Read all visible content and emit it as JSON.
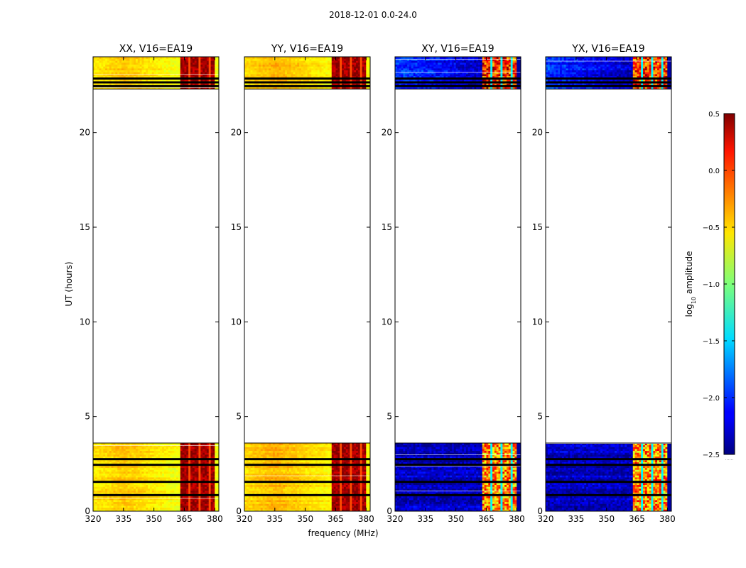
{
  "figure": {
    "suptitle": "2018-12-01 0.0-24.0",
    "xlabel": "frequency (MHz)",
    "ylabel": "UT (hours)"
  },
  "colorbar": {
    "label": "log10 amplitude",
    "label_base": "log",
    "label_sub": "10",
    "label_rest": " amplitude",
    "range": [
      -2.5,
      0.5
    ],
    "ticks": [
      0.5,
      0.0,
      -0.5,
      -1.0,
      -1.5,
      -2.0,
      -2.5
    ],
    "tick_labels": [
      "0.5",
      "0.0",
      "−0.5",
      "−1.0",
      "−1.5",
      "−2.0",
      "−2.5"
    ],
    "colormap": "jet",
    "extend_marker": "......"
  },
  "chart_data": {
    "type": "heatmap",
    "title": "2018-12-01 0.0-24.0",
    "xlabel": "frequency (MHz)",
    "ylabel": "UT (hours)",
    "xlim": [
      320,
      382
    ],
    "ylim": [
      0,
      24
    ],
    "xticks": [
      320,
      335,
      350,
      365,
      380
    ],
    "yticks": [
      0,
      5,
      10,
      15,
      20
    ],
    "data_time_ranges_hours": [
      [
        0,
        3.6
      ],
      [
        22.3,
        24
      ]
    ],
    "flagged_time_hours": [
      0.85,
      1.55,
      2.45,
      2.75,
      22.45,
      22.65,
      22.85
    ],
    "bright_band_mhz": [
      363,
      380
    ],
    "panels": [
      {
        "title": "XX, V16=EA19",
        "pol": "XX",
        "base_level": -0.45,
        "band_level": 0.4
      },
      {
        "title": "YY, V16=EA19",
        "pol": "YY",
        "base_level": -0.4,
        "band_level": 0.4
      },
      {
        "title": "XY, V16=EA19",
        "pol": "XY",
        "base_level": -2.3,
        "band_level": -0.8
      },
      {
        "title": "YX, V16=EA19",
        "pol": "YX",
        "base_level": -2.3,
        "band_level": -0.8
      }
    ]
  }
}
